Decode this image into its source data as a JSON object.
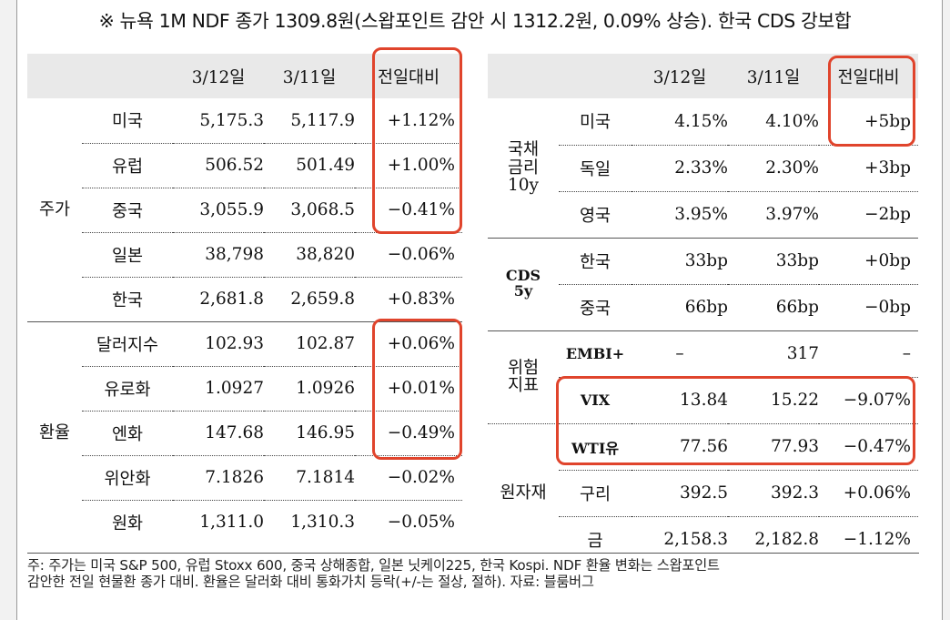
{
  "title": "※ 뉴욕 1M NDF 종가 1309.8원(스왑포인트 감안 시 1312.2원, 0.09% 상승). 한국 CDS 강보합",
  "left_table": {
    "headers": [
      "",
      "",
      "3/12일",
      "3/11일",
      "전일대비"
    ],
    "groups": [
      {
        "label": "주가",
        "rows": [
          {
            "name": "미국",
            "d1": "5,175.3",
            "d2": "5,117.9",
            "chg": "+1.12%"
          },
          {
            "name": "유럽",
            "d1": "506.52",
            "d2": "501.49",
            "chg": "+1.00%"
          },
          {
            "name": "중국",
            "d1": "3,055.9",
            "d2": "3,068.5",
            "chg": "−0.41%"
          },
          {
            "name": "일본",
            "d1": "38,798",
            "d2": "38,820",
            "chg": "−0.06%"
          },
          {
            "name": "한국",
            "d1": "2,681.8",
            "d2": "2,659.8",
            "chg": "+0.83%"
          }
        ]
      },
      {
        "label": "환율",
        "rows": [
          {
            "name": "달러지수",
            "d1": "102.93",
            "d2": "102.87",
            "chg": "+0.06%"
          },
          {
            "name": "유로화",
            "d1": "1.0927",
            "d2": "1.0926",
            "chg": "+0.01%"
          },
          {
            "name": "엔화",
            "d1": "147.68",
            "d2": "146.95",
            "chg": "−0.49%"
          },
          {
            "name": "위안화",
            "d1": "7.1826",
            "d2": "7.1814",
            "chg": "−0.02%"
          },
          {
            "name": "원화",
            "d1": "1,311.0",
            "d2": "1,310.3",
            "chg": "−0.05%"
          }
        ]
      }
    ]
  },
  "right_table": {
    "headers": [
      "",
      "",
      "3/12일",
      "3/11일",
      "전일대비"
    ],
    "groups": [
      {
        "label": "국채\n금리\n10y",
        "rows": [
          {
            "name": "미국",
            "d1": "4.15%",
            "d2": "4.10%",
            "chg": "+5bp"
          },
          {
            "name": "독일",
            "d1": "2.33%",
            "d2": "2.30%",
            "chg": "+3bp"
          },
          {
            "name": "영국",
            "d1": "3.95%",
            "d2": "3.97%",
            "chg": "−2bp"
          }
        ]
      },
      {
        "label": "CDS\n5y",
        "rows": [
          {
            "name": "한국",
            "d1": "33bp",
            "d2": "33bp",
            "chg": "+0bp"
          },
          {
            "name": "중국",
            "d1": "66bp",
            "d2": "66bp",
            "chg": "−0bp"
          }
        ]
      },
      {
        "label": "위험\n지표",
        "rows": [
          {
            "name": "EMBI+",
            "d1": "–",
            "d2": "317",
            "chg": "–"
          },
          {
            "name": "VIX",
            "d1": "13.84",
            "d2": "15.22",
            "chg": "−9.07%"
          }
        ]
      },
      {
        "label": "원자재",
        "rows": [
          {
            "name": "WTI유",
            "d1": "77.56",
            "d2": "77.93",
            "chg": "−0.47%"
          },
          {
            "name": "구리",
            "d1": "392.5",
            "d2": "392.3",
            "chg": "+0.06%"
          },
          {
            "name": "금",
            "d1": "2,158.3",
            "d2": "2,182.8",
            "chg": "−1.12%"
          }
        ]
      }
    ]
  },
  "footer": {
    "line1": "주: 주가는 미국 S&P 500, 유럽 Stoxx 600, 중국 상해종합, 일본 닛케이225, 한국 Kospi. NDF 환율 변화는 스왑포인트",
    "line2": "감안한 전일 현물환 종가 대비. 환율은 달러화 대비 통화가치 등락(+/-는 절상, 절하). 자료: 블룸버그"
  }
}
